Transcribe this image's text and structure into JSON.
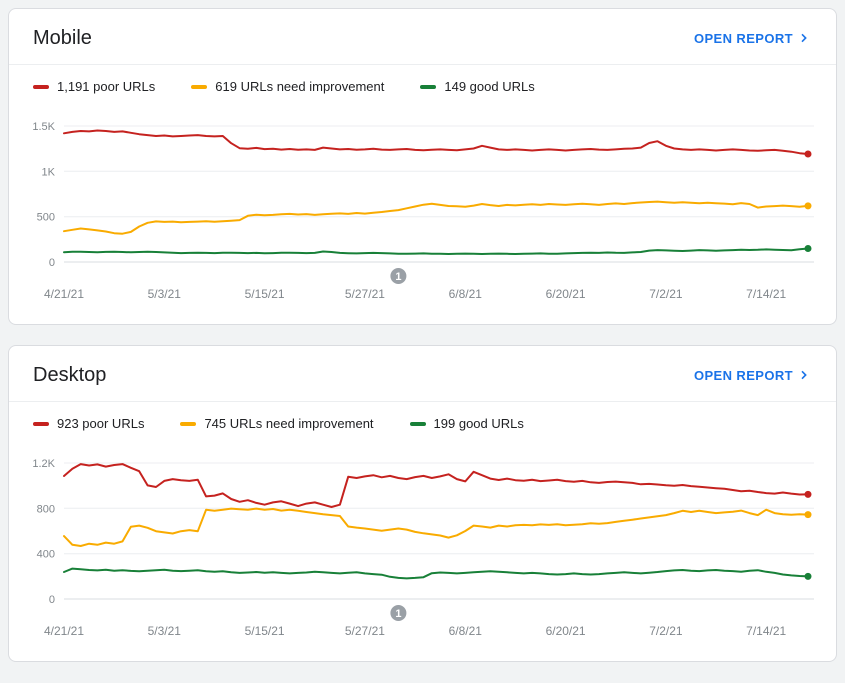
{
  "colors": {
    "accent": "#1a73e8",
    "poor": "#c5221f",
    "needs_improvement": "#f9ab00",
    "good": "#188038",
    "annotation_gray": "#9aa0a6"
  },
  "cards": [
    {
      "title": "Mobile",
      "open_report_label": "OPEN REPORT",
      "legend": [
        {
          "label": "1,191 poor URLs",
          "color": "#c5221f"
        },
        {
          "label": "619 URLs need improvement",
          "color": "#f9ab00"
        },
        {
          "label": "149 good URLs",
          "color": "#188038"
        }
      ]
    },
    {
      "title": "Desktop",
      "open_report_label": "OPEN REPORT",
      "legend": [
        {
          "label": "923 poor URLs",
          "color": "#c5221f"
        },
        {
          "label": "745 URLs need improvement",
          "color": "#f9ab00"
        },
        {
          "label": "199 good URLs",
          "color": "#188038"
        }
      ]
    }
  ],
  "chart_data": [
    {
      "type": "line",
      "title": "Mobile Core Web Vitals URLs over time",
      "num_points": 90,
      "ylim": [
        0,
        1500
      ],
      "y_ticks": [
        {
          "value": 0,
          "label": "0"
        },
        {
          "value": 500,
          "label": "500"
        },
        {
          "value": 1000,
          "label": "1K"
        },
        {
          "value": 1500,
          "label": "1.5K"
        }
      ],
      "x_tick_labels": [
        "4/21/21",
        "5/3/21",
        "5/15/21",
        "5/27/21",
        "6/8/21",
        "6/20/21",
        "7/2/21",
        "7/14/21"
      ],
      "x_tick_indices": [
        0,
        12,
        24,
        36,
        48,
        60,
        72,
        84
      ],
      "annotation": {
        "label": "1",
        "index": 40,
        "color": "#9aa0a6"
      },
      "series": [
        {
          "name": "poor",
          "color": "#c5221f",
          "values": [
            1420,
            1435,
            1445,
            1440,
            1450,
            1445,
            1435,
            1440,
            1425,
            1410,
            1400,
            1390,
            1395,
            1385,
            1390,
            1395,
            1400,
            1390,
            1385,
            1390,
            1310,
            1255,
            1250,
            1258,
            1245,
            1250,
            1240,
            1246,
            1238,
            1242,
            1236,
            1262,
            1252,
            1242,
            1246,
            1238,
            1242,
            1248,
            1240,
            1236,
            1242,
            1246,
            1236,
            1232,
            1238,
            1242,
            1236,
            1232,
            1242,
            1252,
            1282,
            1262,
            1242,
            1236,
            1242,
            1236,
            1230,
            1236,
            1242,
            1236,
            1230,
            1236,
            1242,
            1246,
            1240,
            1236,
            1242,
            1248,
            1252,
            1262,
            1312,
            1332,
            1282,
            1252,
            1242,
            1236,
            1242,
            1236,
            1230,
            1236,
            1242,
            1236,
            1230,
            1226,
            1232,
            1236,
            1226,
            1216,
            1200,
            1191
          ]
        },
        {
          "name": "needs-improvement",
          "color": "#f9ab00",
          "values": [
            340,
            355,
            370,
            360,
            348,
            336,
            318,
            312,
            332,
            392,
            432,
            448,
            442,
            446,
            438,
            442,
            446,
            450,
            444,
            450,
            455,
            462,
            510,
            522,
            516,
            520,
            526,
            530,
            524,
            528,
            520,
            526,
            532,
            536,
            530,
            540,
            534,
            544,
            552,
            562,
            572,
            592,
            612,
            632,
            642,
            630,
            618,
            614,
            610,
            622,
            640,
            628,
            618,
            630,
            624,
            632,
            636,
            630,
            640,
            634,
            630,
            636,
            642,
            636,
            630,
            640,
            646,
            640,
            650,
            656,
            662,
            666,
            660,
            654,
            660,
            654,
            648,
            654,
            648,
            644,
            638,
            650,
            640,
            600,
            612,
            616,
            622,
            616,
            610,
            619
          ]
        },
        {
          "name": "good",
          "color": "#188038",
          "values": [
            108,
            112,
            114,
            110,
            108,
            111,
            113,
            110,
            107,
            110,
            112,
            110,
            106,
            101,
            98,
            100,
            103,
            100,
            98,
            101,
            103,
            100,
            98,
            100,
            96,
            98,
            101,
            103,
            100,
            98,
            100,
            116,
            110,
            100,
            97,
            95,
            98,
            100,
            98,
            95,
            92,
            90,
            93,
            95,
            92,
            90,
            88,
            90,
            93,
            90,
            88,
            90,
            93,
            90,
            88,
            90,
            93,
            95,
            92,
            90,
            95,
            98,
            100,
            103,
            100,
            105,
            102,
            100,
            106,
            110,
            126,
            131,
            128,
            125,
            121,
            126,
            131,
            128,
            125,
            128,
            131,
            136,
            132,
            135,
            139,
            136,
            132,
            130,
            141,
            149
          ]
        }
      ]
    },
    {
      "type": "line",
      "title": "Desktop Core Web Vitals URLs over time",
      "num_points": 90,
      "ylim": [
        0,
        1200
      ],
      "y_ticks": [
        {
          "value": 0,
          "label": "0"
        },
        {
          "value": 400,
          "label": "400"
        },
        {
          "value": 800,
          "label": "800"
        },
        {
          "value": 1200,
          "label": "1.2K"
        }
      ],
      "x_tick_labels": [
        "4/21/21",
        "5/3/21",
        "5/15/21",
        "5/27/21",
        "6/8/21",
        "6/20/21",
        "7/2/21",
        "7/14/21"
      ],
      "x_tick_indices": [
        0,
        12,
        24,
        36,
        48,
        60,
        72,
        84
      ],
      "annotation": {
        "label": "1",
        "index": 40,
        "color": "#9aa0a6"
      },
      "series": [
        {
          "name": "poor",
          "color": "#c5221f",
          "values": [
            1085,
            1150,
            1190,
            1178,
            1188,
            1168,
            1182,
            1190,
            1158,
            1128,
            1002,
            988,
            1042,
            1058,
            1048,
            1042,
            1052,
            905,
            912,
            932,
            882,
            858,
            872,
            848,
            832,
            852,
            862,
            842,
            820,
            842,
            852,
            832,
            812,
            832,
            1078,
            1068,
            1082,
            1092,
            1074,
            1086,
            1068,
            1058,
            1076,
            1086,
            1068,
            1082,
            1100,
            1058,
            1038,
            1122,
            1092,
            1062,
            1050,
            1062,
            1048,
            1044,
            1052,
            1040,
            1046,
            1052,
            1040,
            1034,
            1042,
            1030,
            1024,
            1032,
            1036,
            1030,
            1024,
            1012,
            1016,
            1010,
            1004,
            1000,
            1006,
            996,
            990,
            984,
            978,
            972,
            962,
            950,
            956,
            944,
            934,
            930,
            940,
            930,
            922,
            923
          ]
        },
        {
          "name": "needs-improvement",
          "color": "#f9ab00",
          "values": [
            555,
            478,
            468,
            488,
            478,
            498,
            488,
            508,
            638,
            648,
            628,
            598,
            588,
            578,
            598,
            608,
            598,
            788,
            778,
            788,
            798,
            792,
            788,
            798,
            788,
            794,
            780,
            788,
            778,
            768,
            758,
            748,
            740,
            732,
            640,
            630,
            622,
            612,
            602,
            612,
            622,
            612,
            592,
            580,
            570,
            560,
            542,
            562,
            600,
            648,
            640,
            630,
            648,
            640,
            650,
            654,
            650,
            658,
            654,
            660,
            650,
            655,
            660,
            668,
            664,
            670,
            680,
            690,
            700,
            710,
            720,
            730,
            740,
            758,
            778,
            768,
            778,
            768,
            758,
            764,
            770,
            780,
            758,
            740,
            788,
            758,
            748,
            744,
            748,
            745
          ]
        },
        {
          "name": "good",
          "color": "#188038",
          "values": [
            238,
            268,
            262,
            256,
            252,
            258,
            250,
            254,
            248,
            244,
            250,
            254,
            258,
            250,
            246,
            250,
            254,
            244,
            240,
            244,
            236,
            230,
            234,
            238,
            232,
            236,
            230,
            226,
            230,
            234,
            240,
            236,
            230,
            226,
            232,
            236,
            226,
            220,
            214,
            196,
            186,
            182,
            186,
            192,
            228,
            234,
            230,
            226,
            230,
            236,
            240,
            244,
            240,
            236,
            230,
            226,
            230,
            226,
            220,
            216,
            220,
            226,
            220,
            216,
            220,
            226,
            230,
            236,
            230,
            226,
            232,
            238,
            246,
            252,
            256,
            250,
            246,
            252,
            256,
            250,
            246,
            240,
            250,
            254,
            240,
            230,
            216,
            208,
            203,
            199
          ]
        }
      ]
    }
  ]
}
